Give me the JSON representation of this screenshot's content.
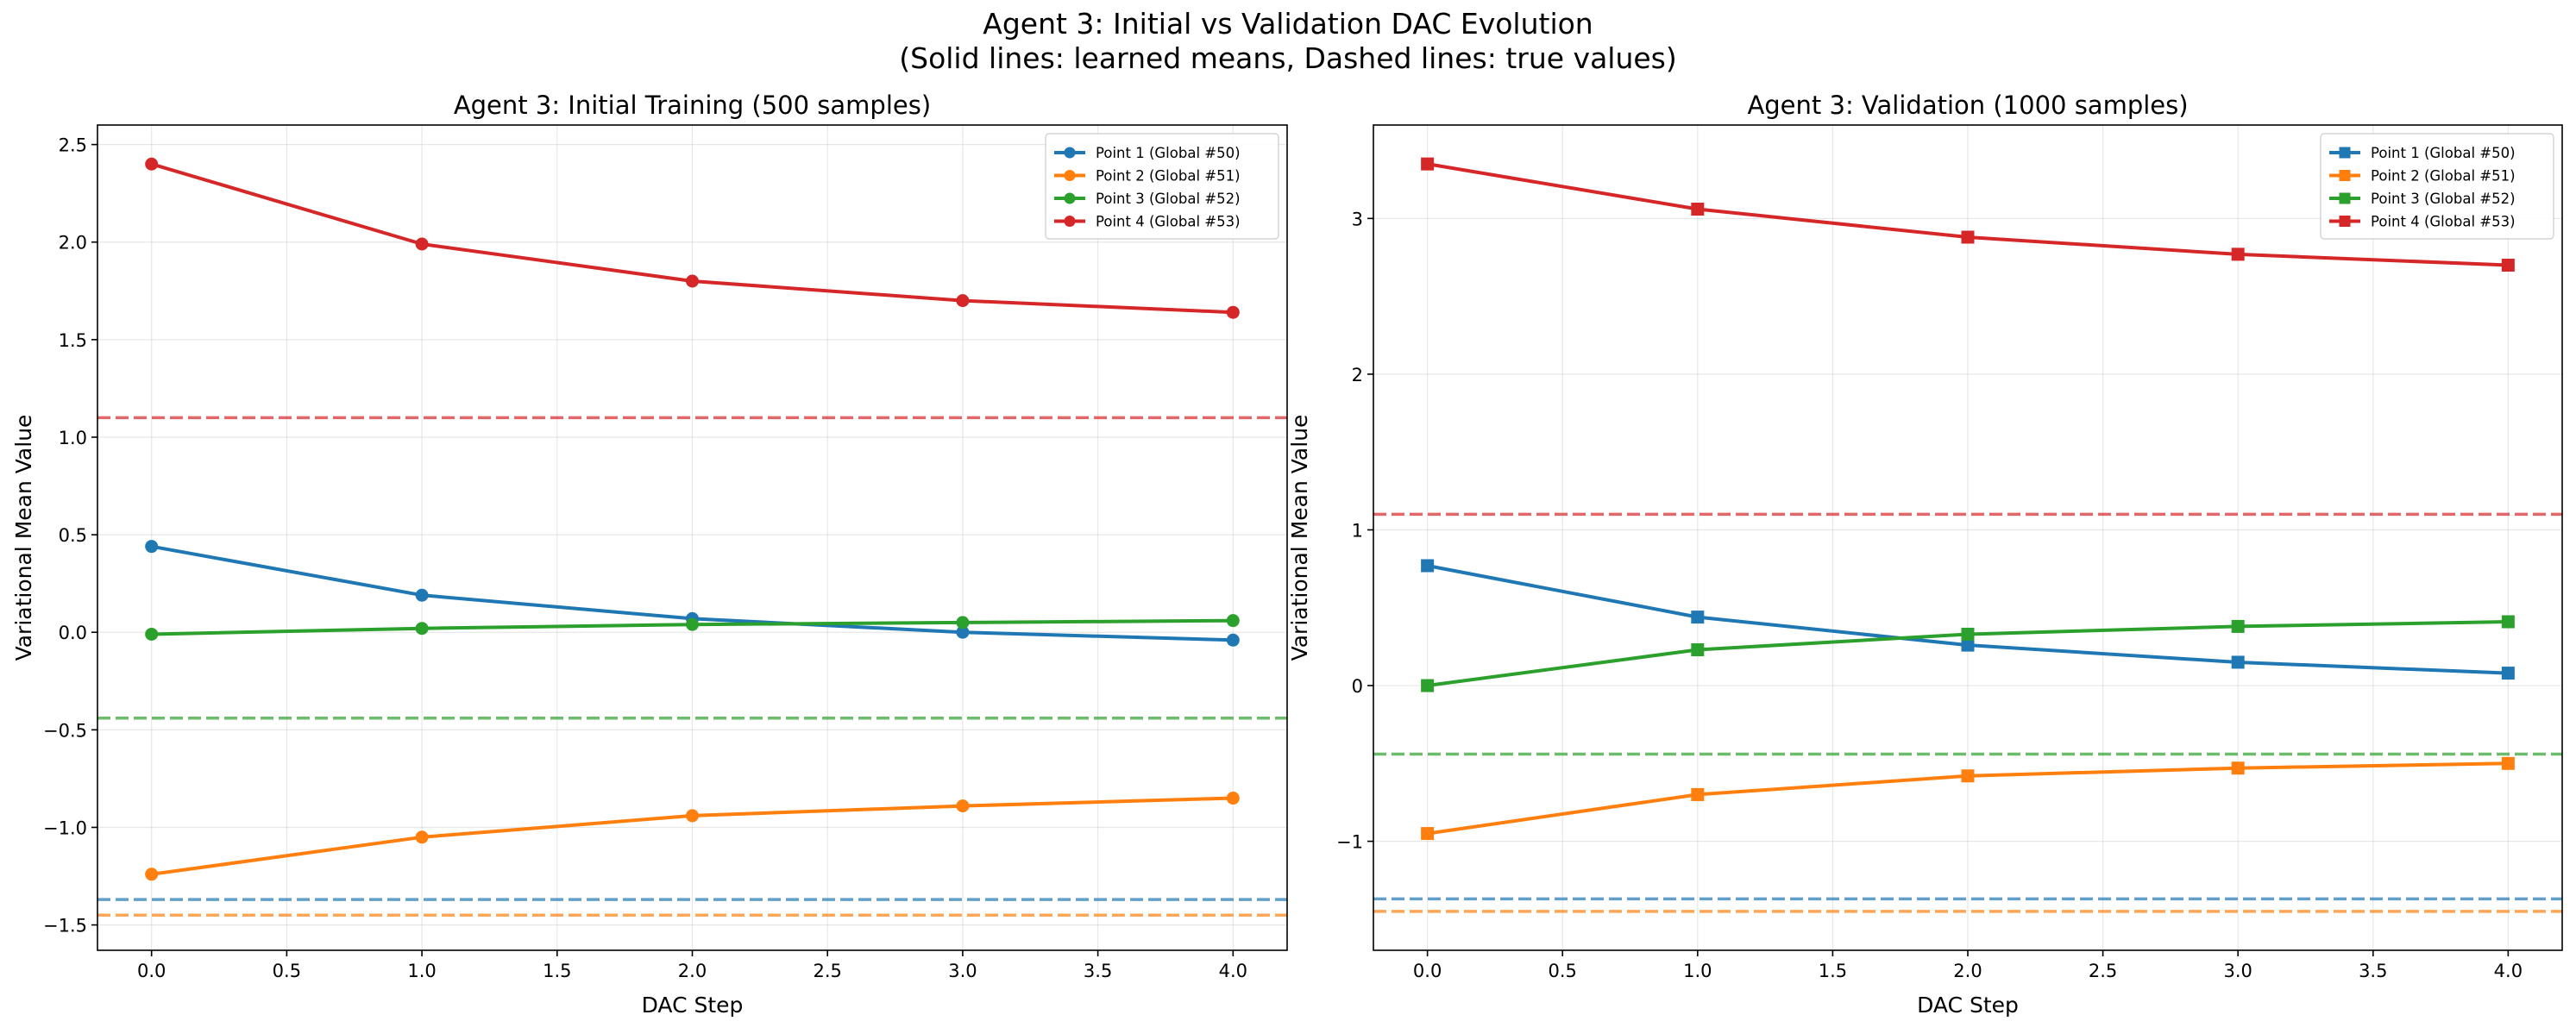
{
  "suptitle": {
    "line1": "Agent 3: Initial vs Validation DAC Evolution",
    "line2": "(Solid lines: learned means, Dashed lines: true values)"
  },
  "colors": {
    "point1": "#1f77b4",
    "point2": "#ff7f0e",
    "point3": "#2ca02c",
    "point4": "#d62728"
  },
  "chart_data": [
    {
      "type": "line",
      "title": "Agent 3: Initial Training (500 samples)",
      "xlabel": "DAC Step",
      "ylabel": "Variational Mean Value",
      "marker": "circle",
      "x": [
        0,
        1,
        2,
        3,
        4
      ],
      "xlim": [
        -0.2,
        4.2
      ],
      "ylim": [
        -1.63,
        2.6
      ],
      "xticks": [
        0.0,
        0.5,
        1.0,
        1.5,
        2.0,
        2.5,
        3.0,
        3.5,
        4.0
      ],
      "xtick_labels": [
        "0.0",
        "0.5",
        "1.0",
        "1.5",
        "2.0",
        "2.5",
        "3.0",
        "3.5",
        "4.0"
      ],
      "yticks": [
        -1.5,
        -1.0,
        -0.5,
        0.0,
        0.5,
        1.0,
        1.5,
        2.0,
        2.5
      ],
      "ytick_labels": [
        "−1.5",
        "−1.0",
        "−0.5",
        "0.0",
        "0.5",
        "1.0",
        "1.5",
        "2.0",
        "2.5"
      ],
      "grid": true,
      "legend_position": "upper right",
      "series": [
        {
          "name": "Point 1 (Global #50)",
          "color_key": "point1",
          "values": [
            0.44,
            0.19,
            0.07,
            0.0,
            -0.04
          ]
        },
        {
          "name": "Point 2 (Global #51)",
          "color_key": "point2",
          "values": [
            -1.24,
            -1.05,
            -0.94,
            -0.89,
            -0.85
          ]
        },
        {
          "name": "Point 3 (Global #52)",
          "color_key": "point3",
          "values": [
            -0.01,
            0.02,
            0.04,
            0.05,
            0.06
          ]
        },
        {
          "name": "Point 4 (Global #53)",
          "color_key": "point4",
          "values": [
            2.4,
            1.99,
            1.8,
            1.7,
            1.64
          ]
        }
      ],
      "true_values": [
        {
          "color_key": "point1",
          "value": -1.37
        },
        {
          "color_key": "point2",
          "value": -1.45
        },
        {
          "color_key": "point3",
          "value": -0.44
        },
        {
          "color_key": "point4",
          "value": 1.1
        }
      ]
    },
    {
      "type": "line",
      "title": "Agent 3: Validation (1000 samples)",
      "xlabel": "DAC Step",
      "ylabel": "Variational Mean Value",
      "marker": "square",
      "x": [
        0,
        1,
        2,
        3,
        4
      ],
      "xlim": [
        -0.2,
        4.2
      ],
      "ylim": [
        -1.7,
        3.6
      ],
      "xticks": [
        0.0,
        0.5,
        1.0,
        1.5,
        2.0,
        2.5,
        3.0,
        3.5,
        4.0
      ],
      "xtick_labels": [
        "0.0",
        "0.5",
        "1.0",
        "1.5",
        "2.0",
        "2.5",
        "3.0",
        "3.5",
        "4.0"
      ],
      "yticks": [
        -1,
        0,
        1,
        2,
        3
      ],
      "ytick_labels": [
        "−1",
        "0",
        "1",
        "2",
        "3"
      ],
      "grid": true,
      "legend_position": "upper right",
      "series": [
        {
          "name": "Point 1 (Global #50)",
          "color_key": "point1",
          "values": [
            0.77,
            0.44,
            0.26,
            0.15,
            0.08
          ]
        },
        {
          "name": "Point 2 (Global #51)",
          "color_key": "point2",
          "values": [
            -0.95,
            -0.7,
            -0.58,
            -0.53,
            -0.5
          ]
        },
        {
          "name": "Point 3 (Global #52)",
          "color_key": "point3",
          "values": [
            0.0,
            0.23,
            0.33,
            0.38,
            0.41
          ]
        },
        {
          "name": "Point 4 (Global #53)",
          "color_key": "point4",
          "values": [
            3.35,
            3.06,
            2.88,
            2.77,
            2.7
          ]
        }
      ],
      "true_values": [
        {
          "color_key": "point1",
          "value": -1.37
        },
        {
          "color_key": "point2",
          "value": -1.45
        },
        {
          "color_key": "point3",
          "value": -0.44
        },
        {
          "color_key": "point4",
          "value": 1.1
        }
      ]
    }
  ]
}
